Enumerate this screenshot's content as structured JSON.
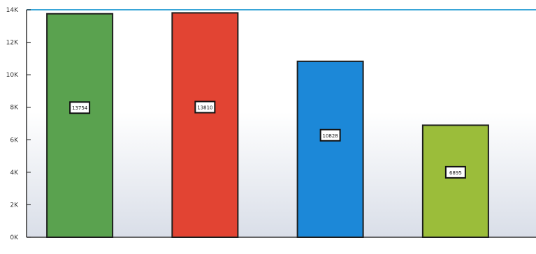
{
  "chart_data": {
    "type": "bar",
    "title": "",
    "xlabel": "",
    "ylabel": "",
    "categories": [
      "",
      "",
      "",
      ""
    ],
    "values": [
      13754,
      13810,
      10828,
      6895
    ],
    "data_labels": [
      "13754",
      "13810",
      "10828",
      "6895"
    ],
    "ylim": [
      0,
      14000
    ],
    "yticks": [
      0,
      2000,
      4000,
      6000,
      8000,
      10000,
      12000,
      14000
    ],
    "ytick_labels": [
      "0K",
      "2K",
      "4K",
      "6K",
      "8K",
      "10K",
      "12K",
      "14K"
    ],
    "colors": [
      "#5aa24f",
      "#e24433",
      "#1c88d8",
      "#9bbd3a"
    ],
    "grid": false,
    "legend": "none"
  }
}
